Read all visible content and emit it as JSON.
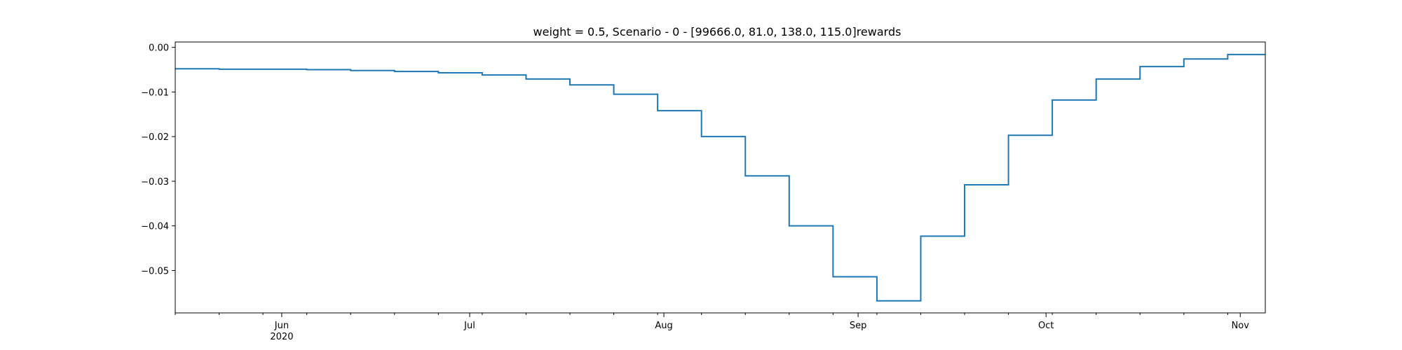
{
  "chart_data": {
    "type": "line",
    "drawstyle": "steps-post",
    "title": "weight = 0.5, Scenario - 0 - [99666.0, 81.0, 138.0, 115.0]rewards",
    "xlabel": "",
    "ylabel": "",
    "grid": false,
    "legend": "none",
    "xlim": [
      "2020-05-15",
      "2020-11-05"
    ],
    "ylim": [
      -0.0595,
      0.0012
    ],
    "x_ticks": [
      {
        "date": "2020-06-01",
        "label": "Jun",
        "sublabel": "2020"
      },
      {
        "date": "2020-07-01",
        "label": "Jul",
        "sublabel": ""
      },
      {
        "date": "2020-08-01",
        "label": "Aug",
        "sublabel": ""
      },
      {
        "date": "2020-09-01",
        "label": "Sep",
        "sublabel": ""
      },
      {
        "date": "2020-10-01",
        "label": "Oct",
        "sublabel": ""
      },
      {
        "date": "2020-11-01",
        "label": "Nov",
        "sublabel": ""
      }
    ],
    "y_ticks": [
      {
        "value": 0.0,
        "label": "0.00"
      },
      {
        "value": -0.01,
        "label": "−0.01"
      },
      {
        "value": -0.02,
        "label": "−0.02"
      },
      {
        "value": -0.03,
        "label": "−0.03"
      },
      {
        "value": -0.04,
        "label": "−0.04"
      },
      {
        "value": -0.05,
        "label": "−0.05"
      }
    ],
    "series": [
      {
        "color": "#1f77b4",
        "points": [
          {
            "x": "2020-05-15",
            "y": -0.0048
          },
          {
            "x": "2020-05-22",
            "y": -0.0049
          },
          {
            "x": "2020-05-29",
            "y": -0.0049
          },
          {
            "x": "2020-06-05",
            "y": -0.005
          },
          {
            "x": "2020-06-12",
            "y": -0.0052
          },
          {
            "x": "2020-06-19",
            "y": -0.0054
          },
          {
            "x": "2020-06-26",
            "y": -0.0057
          },
          {
            "x": "2020-07-03",
            "y": -0.0062
          },
          {
            "x": "2020-07-10",
            "y": -0.0071
          },
          {
            "x": "2020-07-17",
            "y": -0.0084
          },
          {
            "x": "2020-07-24",
            "y": -0.0105
          },
          {
            "x": "2020-07-31",
            "y": -0.0142
          },
          {
            "x": "2020-08-07",
            "y": -0.02
          },
          {
            "x": "2020-08-14",
            "y": -0.0288
          },
          {
            "x": "2020-08-21",
            "y": -0.04
          },
          {
            "x": "2020-08-28",
            "y": -0.0514
          },
          {
            "x": "2020-09-04",
            "y": -0.0568
          },
          {
            "x": "2020-09-11",
            "y": -0.0423
          },
          {
            "x": "2020-09-18",
            "y": -0.0308
          },
          {
            "x": "2020-09-25",
            "y": -0.0197
          },
          {
            "x": "2020-10-02",
            "y": -0.0118
          },
          {
            "x": "2020-10-09",
            "y": -0.0071
          },
          {
            "x": "2020-10-16",
            "y": -0.0043
          },
          {
            "x": "2020-10-23",
            "y": -0.0026
          },
          {
            "x": "2020-10-30",
            "y": -0.0016
          },
          {
            "x": "2020-11-05",
            "y": -0.0016
          }
        ]
      }
    ]
  }
}
